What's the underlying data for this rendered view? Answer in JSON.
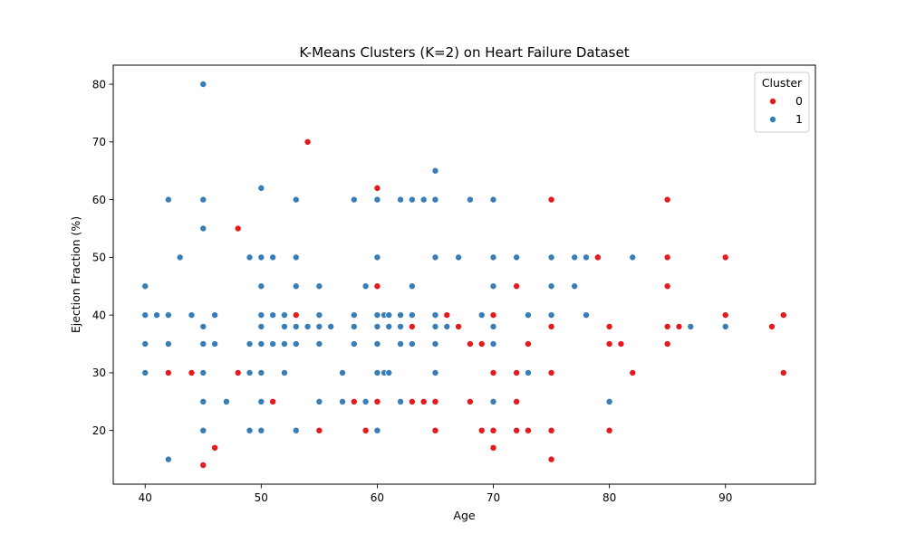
{
  "chart_data": {
    "type": "scatter",
    "title": "K-Means Clusters (K=2) on Heart Failure Dataset",
    "xlabel": "Age",
    "ylabel": "Ejection Fraction (%)",
    "xlim": [
      37.25,
      97.75
    ],
    "ylim": [
      10.7,
      83.3
    ],
    "x_ticks": [
      40,
      50,
      60,
      70,
      80,
      90
    ],
    "y_ticks": [
      20,
      30,
      40,
      50,
      60,
      70,
      80
    ],
    "grid": false,
    "legend": {
      "title": "Cluster",
      "placement": "top-right"
    },
    "series": [
      {
        "name": "0",
        "color": "#e41a1c",
        "points": [
          [
            42,
            30
          ],
          [
            44,
            30
          ],
          [
            45,
            14
          ],
          [
            46,
            17
          ],
          [
            48,
            55
          ],
          [
            48,
            30
          ],
          [
            51,
            25
          ],
          [
            53,
            40
          ],
          [
            54,
            70
          ],
          [
            55,
            20
          ],
          [
            58,
            25
          ],
          [
            59,
            20
          ],
          [
            60,
            62
          ],
          [
            60,
            45
          ],
          [
            60,
            25
          ],
          [
            63,
            38
          ],
          [
            63,
            25
          ],
          [
            64,
            25
          ],
          [
            65,
            25
          ],
          [
            65,
            20
          ],
          [
            66,
            40
          ],
          [
            67,
            38
          ],
          [
            68,
            35
          ],
          [
            68,
            25
          ],
          [
            69,
            35
          ],
          [
            69,
            20
          ],
          [
            70,
            40
          ],
          [
            70,
            30
          ],
          [
            70,
            20
          ],
          [
            70,
            17
          ],
          [
            72,
            45
          ],
          [
            72,
            30
          ],
          [
            72,
            25
          ],
          [
            72,
            20
          ],
          [
            73,
            35
          ],
          [
            73,
            20
          ],
          [
            75,
            60
          ],
          [
            75,
            38
          ],
          [
            75,
            30
          ],
          [
            75,
            20
          ],
          [
            75,
            15
          ],
          [
            79,
            50
          ],
          [
            80,
            38
          ],
          [
            80,
            35
          ],
          [
            80,
            20
          ],
          [
            81,
            35
          ],
          [
            82,
            30
          ],
          [
            85,
            60
          ],
          [
            85,
            50
          ],
          [
            85,
            45
          ],
          [
            85,
            38
          ],
          [
            85,
            35
          ],
          [
            86,
            38
          ],
          [
            90,
            50
          ],
          [
            90,
            40
          ],
          [
            94,
            38
          ],
          [
            95,
            40
          ],
          [
            95,
            30
          ]
        ]
      },
      {
        "name": "1",
        "color": "#377eb8",
        "points": [
          [
            40,
            45
          ],
          [
            40,
            40
          ],
          [
            40,
            35
          ],
          [
            40,
            30
          ],
          [
            41,
            40
          ],
          [
            42,
            60
          ],
          [
            42,
            40
          ],
          [
            42,
            35
          ],
          [
            42,
            15
          ],
          [
            43,
            50
          ],
          [
            44,
            40
          ],
          [
            45,
            80
          ],
          [
            45,
            60
          ],
          [
            45,
            55
          ],
          [
            45,
            38
          ],
          [
            45,
            35
          ],
          [
            45,
            30
          ],
          [
            45,
            25
          ],
          [
            45,
            20
          ],
          [
            46,
            40
          ],
          [
            46,
            35
          ],
          [
            47,
            25
          ],
          [
            49,
            50
          ],
          [
            49,
            35
          ],
          [
            49,
            30
          ],
          [
            49,
            20
          ],
          [
            50,
            62
          ],
          [
            50,
            50
          ],
          [
            50,
            45
          ],
          [
            50,
            40
          ],
          [
            50,
            38
          ],
          [
            50,
            35
          ],
          [
            50,
            30
          ],
          [
            50,
            25
          ],
          [
            50,
            20
          ],
          [
            51,
            50
          ],
          [
            51,
            40
          ],
          [
            51,
            35
          ],
          [
            52,
            40
          ],
          [
            52,
            38
          ],
          [
            52,
            35
          ],
          [
            52,
            30
          ],
          [
            53,
            60
          ],
          [
            53,
            50
          ],
          [
            53,
            45
          ],
          [
            53,
            38
          ],
          [
            53,
            35
          ],
          [
            53,
            20
          ],
          [
            54,
            38
          ],
          [
            55,
            45
          ],
          [
            55,
            40
          ],
          [
            55,
            38
          ],
          [
            55,
            35
          ],
          [
            55,
            25
          ],
          [
            56,
            38
          ],
          [
            57,
            30
          ],
          [
            57,
            25
          ],
          [
            58,
            60
          ],
          [
            58,
            40
          ],
          [
            58,
            38
          ],
          [
            58,
            35
          ],
          [
            59,
            45
          ],
          [
            59,
            25
          ],
          [
            60,
            60
          ],
          [
            60,
            50
          ],
          [
            60,
            40
          ],
          [
            60,
            38
          ],
          [
            60,
            35
          ],
          [
            60,
            30
          ],
          [
            60,
            20
          ],
          [
            60.6,
            40
          ],
          [
            60.6,
            30
          ],
          [
            61,
            40
          ],
          [
            61,
            38
          ],
          [
            61,
            30
          ],
          [
            62,
            60
          ],
          [
            62,
            40
          ],
          [
            62,
            38
          ],
          [
            62,
            35
          ],
          [
            62,
            25
          ],
          [
            63,
            60
          ],
          [
            63,
            45
          ],
          [
            63,
            40
          ],
          [
            63,
            35
          ],
          [
            64,
            60
          ],
          [
            65,
            65
          ],
          [
            65,
            60
          ],
          [
            65,
            50
          ],
          [
            65,
            40
          ],
          [
            65,
            38
          ],
          [
            65,
            35
          ],
          [
            65,
            30
          ],
          [
            66,
            38
          ],
          [
            67,
            50
          ],
          [
            68,
            60
          ],
          [
            69,
            40
          ],
          [
            70,
            60
          ],
          [
            70,
            50
          ],
          [
            70,
            45
          ],
          [
            70,
            38
          ],
          [
            70,
            35
          ],
          [
            70,
            25
          ],
          [
            72,
            50
          ],
          [
            73,
            40
          ],
          [
            73,
            30
          ],
          [
            75,
            50
          ],
          [
            75,
            45
          ],
          [
            75,
            40
          ],
          [
            77,
            50
          ],
          [
            77,
            45
          ],
          [
            78,
            50
          ],
          [
            78,
            40
          ],
          [
            80,
            25
          ],
          [
            82,
            50
          ],
          [
            87,
            38
          ],
          [
            90,
            38
          ]
        ]
      }
    ]
  }
}
